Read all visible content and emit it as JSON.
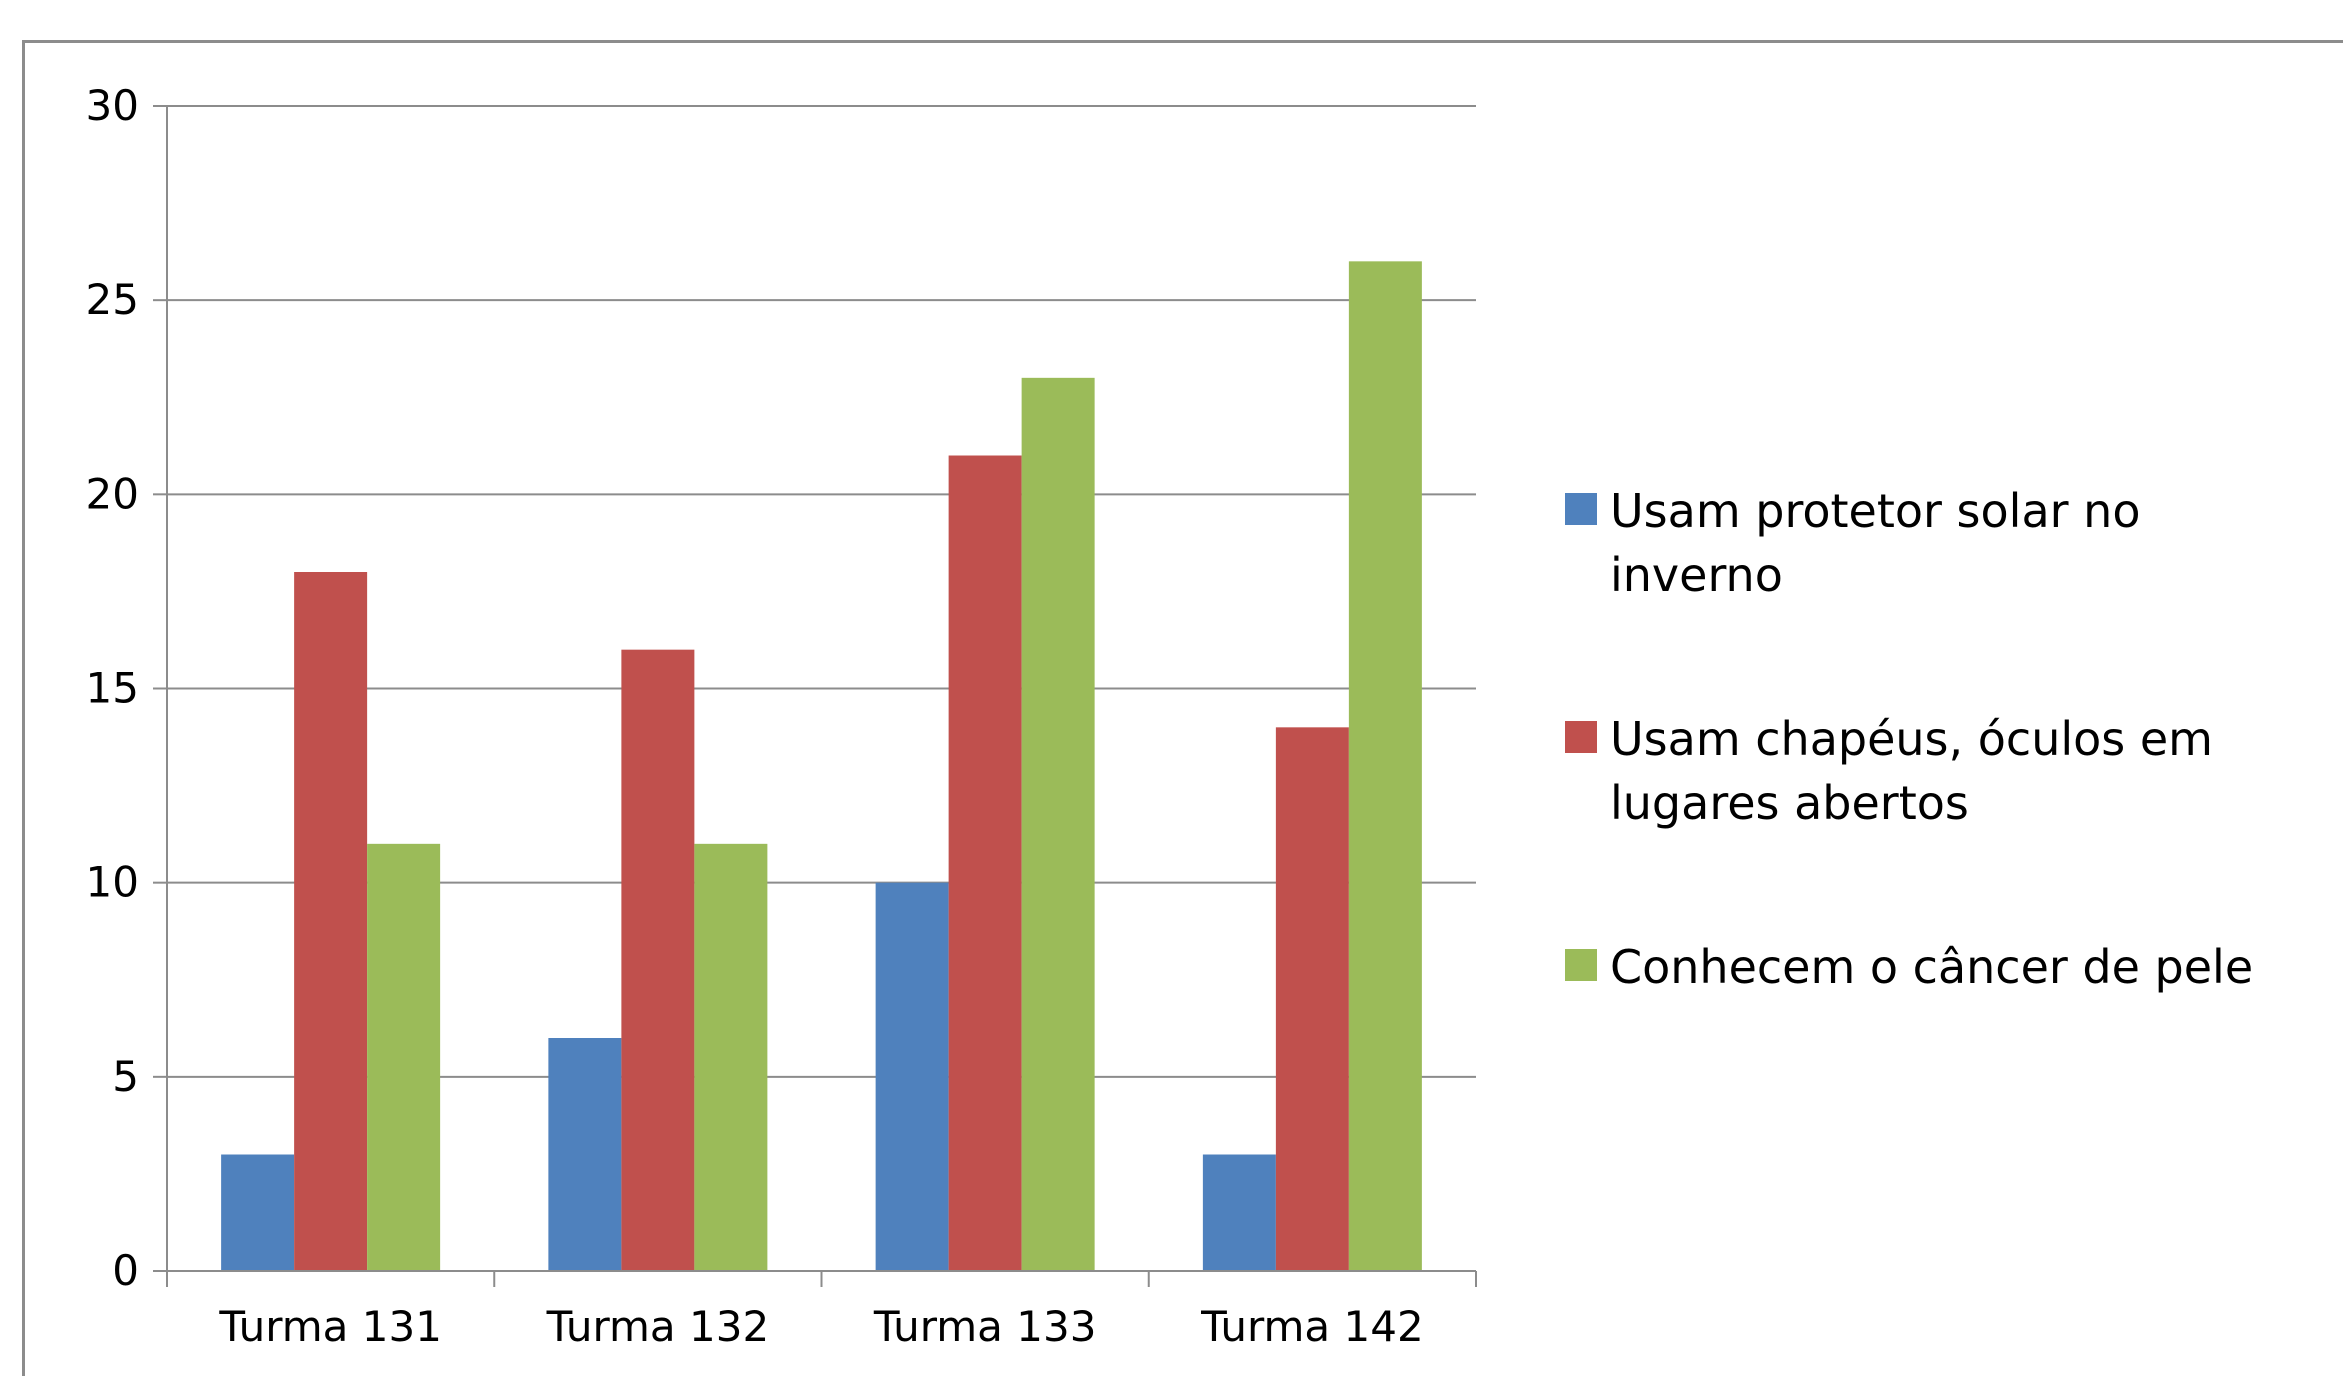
{
  "chart_data": {
    "type": "bar",
    "title": "",
    "xlabel": "",
    "ylabel": "",
    "categories": [
      "Turma 131",
      "Turma 132",
      "Turma 133",
      "Turma 142"
    ],
    "series": [
      {
        "name": "Usam protetor solar no inverno",
        "values": [
          3,
          6,
          10,
          3
        ],
        "color": "#4f81bd"
      },
      {
        "name": "Usam chapéus, óculos em lugares abertos",
        "values": [
          18,
          16,
          21,
          14
        ],
        "color": "#c0504d"
      },
      {
        "name": "Conhecem o câncer de pele",
        "values": [
          11,
          11,
          23,
          26
        ],
        "color": "#9bbb59"
      }
    ],
    "ylim": [
      0,
      30
    ],
    "yticks": [
      0,
      5,
      10,
      15,
      20,
      25,
      30
    ],
    "grid": true,
    "legend_position": "right"
  }
}
